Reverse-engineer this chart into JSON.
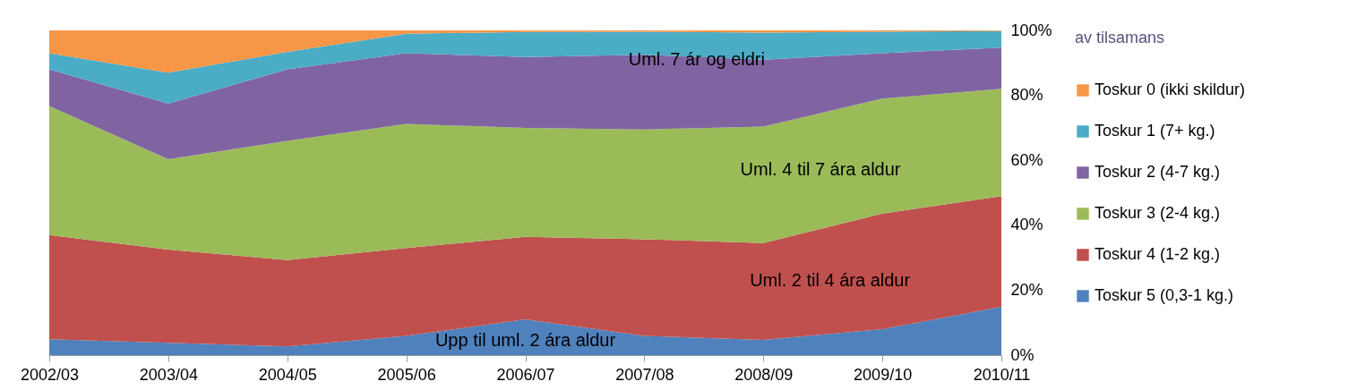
{
  "chart_data": {
    "type": "area",
    "stacked": true,
    "legend": "right",
    "legend_title": "av tilsamans",
    "categories": [
      "2002/03",
      "2003/04",
      "2004/05",
      "2005/06",
      "2006/07",
      "2007/08",
      "2008/09",
      "2009/10",
      "2010/11"
    ],
    "ylim": [
      0,
      100
    ],
    "yticks": [
      {
        "value": 0,
        "label": "0%"
      },
      {
        "value": 20,
        "label": "20%"
      },
      {
        "value": 40,
        "label": "40%"
      },
      {
        "value": 60,
        "label": "60%"
      },
      {
        "value": 80,
        "label": "80%"
      },
      {
        "value": 100,
        "label": "100%"
      }
    ],
    "series": [
      {
        "name": "Toskur 5 (0,3-1 kg.)",
        "color": "#4f81bd",
        "values": [
          4.9,
          3.8,
          2.7,
          5.9,
          11,
          5.9,
          4.7,
          8,
          14.9
        ]
      },
      {
        "name": "Toskur 4 (1-2 kg.)",
        "color": "#c0504d",
        "values": [
          32.1,
          28.7,
          26.6,
          27.1,
          25.4,
          29.8,
          29.8,
          35.6,
          34.1
        ]
      },
      {
        "name": "Toskur 3 (2-4 kg.)",
        "color": "#9bbb59",
        "values": [
          39.7,
          27.8,
          36.7,
          38.2,
          33.6,
          33.8,
          35.9,
          35.4,
          33
        ]
      },
      {
        "name": "Toskur 2 (4-7 kg.)",
        "color": "#8064a2",
        "values": [
          11.3,
          17.2,
          22,
          21.8,
          21.8,
          23,
          20.6,
          14,
          12.7
        ]
      },
      {
        "name": "Toskur 1 (7+ kg.)",
        "color": "#4bacc6",
        "values": [
          5,
          9.5,
          5.4,
          6,
          7.7,
          7.1,
          8.3,
          6.6,
          5.1
        ]
      },
      {
        "name": "Toskur 0 (ikki skildur)",
        "color": "#f79646",
        "values": [
          7,
          13,
          6.6,
          1,
          0.5,
          0.4,
          0.7,
          0.4,
          0.2
        ]
      }
    ],
    "annotations": [
      "Upp til uml. 2 ára aldur",
      "Uml. 2 til 4 ára aldur",
      "Uml. 4 til 7 ára aldur",
      "Uml. 7 ár og eldri"
    ]
  }
}
